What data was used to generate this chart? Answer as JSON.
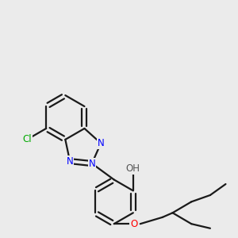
{
  "bg_color": "#ebebeb",
  "line_color": "#1a1a1a",
  "bond_width": 1.6,
  "atom_colors": {
    "N": "#0000ff",
    "O": "#ff0000",
    "Cl": "#00aa00",
    "H": "#555555",
    "C": "#1a1a1a"
  },
  "font_size_atom": 8.5
}
